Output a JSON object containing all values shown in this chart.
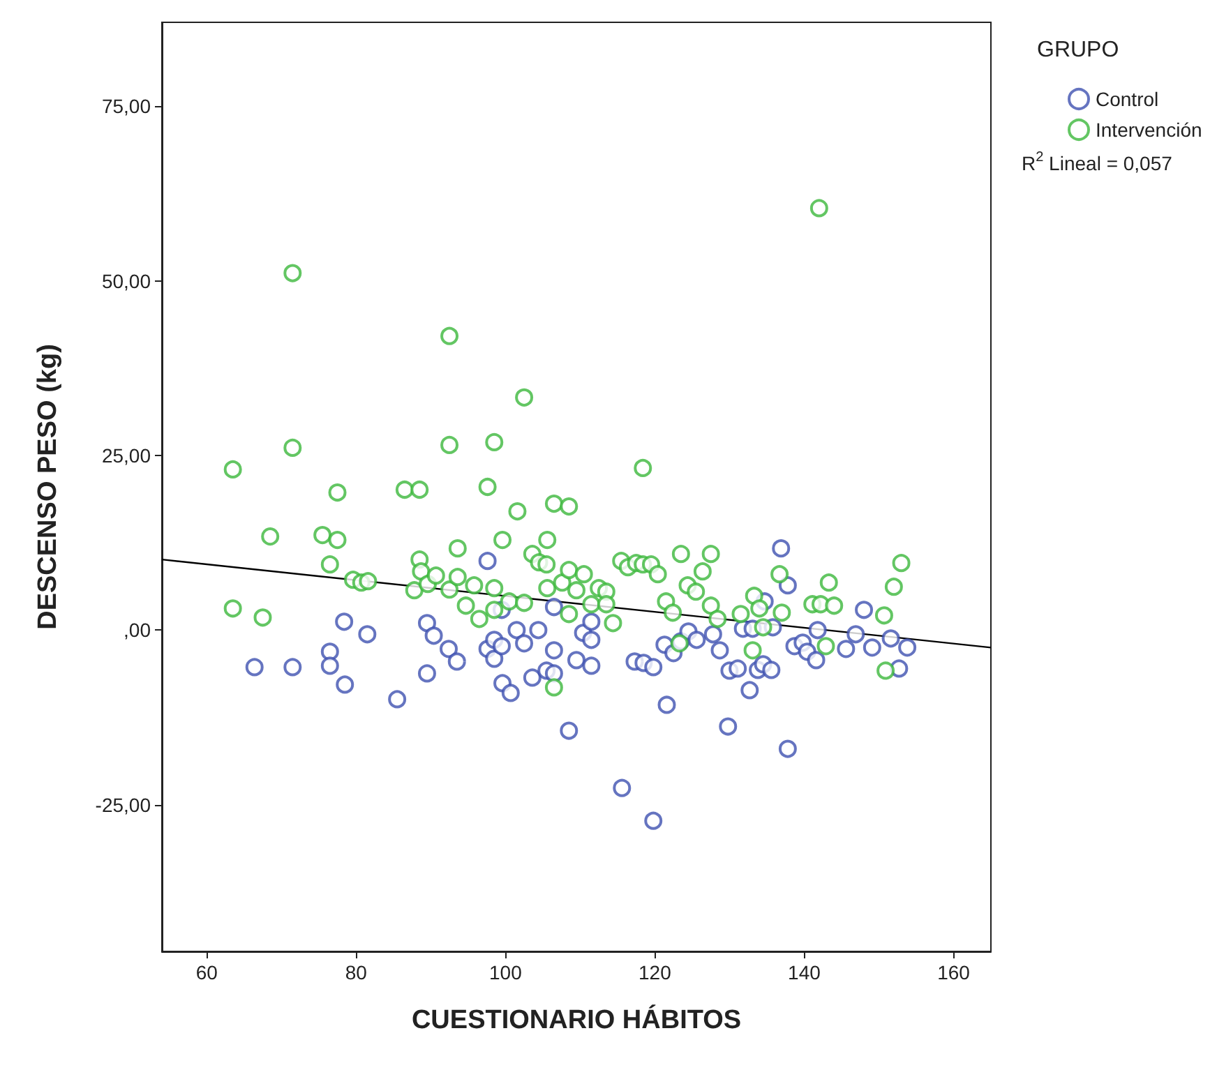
{
  "chart_data": {
    "type": "scatter",
    "xlabel": "CUESTIONARIO HÁBITOS",
    "ylabel": "DESCENSO PESO (kg)",
    "legend_title": "GRUPO",
    "legend": "top right",
    "grid": false,
    "xlim": [
      54,
      165
    ],
    "xticks": [
      60,
      80,
      100,
      120,
      140,
      160
    ],
    "ylim": [
      -46,
      87
    ],
    "yticks": [
      {
        "value": -25,
        "label": "-25,00"
      },
      {
        "value": 0,
        "label": ",00"
      },
      {
        "value": 25,
        "label": "25,00"
      },
      {
        "value": 50,
        "label": "50,00"
      },
      {
        "value": 75,
        "label": "75,00"
      }
    ],
    "annotations": [
      "R$^{2}$ Lineal = 0,057"
    ],
    "series": [
      {
        "name": "Control",
        "color": "#3f51b0",
        "marker": "circle",
        "x": [
          66.4,
          71.5,
          76.5,
          76.5,
          78.5,
          78.4,
          81.5,
          85.5,
          89.5,
          89.5,
          90.4,
          92.4,
          93.5,
          97.6,
          97.6,
          98.5,
          98.5,
          99.5,
          99.5,
          99.6,
          100.7,
          101.5,
          102.5,
          103.6,
          104.4,
          105.5,
          106.5,
          106.5,
          106.5,
          108.5,
          109.5,
          110.4,
          111.5,
          111.5,
          111.5,
          115.6,
          119.8,
          121.6,
          129.8,
          137.8,
          132.7,
          117.3,
          118.5,
          119.8,
          121.3,
          122.5,
          123.5,
          124.5,
          125.6,
          127.8,
          128.7,
          130,
          131.1,
          131.8,
          133.1,
          133.8,
          134.5,
          135.6,
          134.7,
          135.8,
          136.9,
          137.8,
          138.7,
          139.8,
          140.4,
          141.6,
          141.8,
          145.6,
          146.9,
          148,
          149.1,
          152.7,
          153.8,
          151.6
        ],
        "values": [
          -5.3,
          -5.3,
          -3.1,
          -5.1,
          -7.8,
          1.2,
          -0.6,
          -9.9,
          1.0,
          -6.2,
          -0.8,
          -2.7,
          -4.5,
          9.9,
          -2.7,
          -1.4,
          -4.1,
          -2.3,
          2.9,
          -7.6,
          -9.0,
          0,
          -1.9,
          -6.8,
          0,
          -5.8,
          -2.9,
          -6.2,
          3.3,
          -14.4,
          -4.3,
          -0.4,
          1.2,
          -1.4,
          -5.1,
          -22.6,
          -27.3,
          -10.7,
          -13.8,
          -17.0,
          -8.6,
          -4.5,
          -4.7,
          -5.3,
          -2.1,
          -3.3,
          -1.6,
          -0.2,
          -1.4,
          -0.6,
          -2.9,
          -5.8,
          -5.5,
          0.2,
          0.2,
          -5.7,
          -4.9,
          -5.7,
          4.1,
          0.4,
          11.7,
          6.4,
          -2.3,
          -1.8,
          -3.1,
          -4.3,
          0,
          -2.7,
          -0.6,
          2.9,
          -2.5,
          -5.5,
          -2.5,
          -1.2
        ]
      },
      {
        "name": "Intervención",
        "color": "#3cb83c",
        "marker": "circle",
        "x": [
          63.5,
          63.5,
          67.5,
          68.5,
          71.5,
          71.5,
          75.5,
          76.5,
          77.5,
          77.5,
          79.6,
          80.7,
          81.6,
          86.5,
          88.5,
          88.5,
          88.7,
          87.8,
          89.6,
          90.7,
          92.5,
          92.5,
          92.5,
          93.6,
          93.6,
          94.7,
          95.8,
          96.5,
          97.6,
          98.5,
          98.5,
          98.5,
          99.6,
          100.5,
          101.6,
          102.5,
          102.5,
          103.6,
          104.5,
          105.5,
          105.6,
          105.6,
          106.5,
          107.6,
          106.5,
          108.5,
          108.5,
          108.5,
          109.5,
          110.5,
          111.5,
          112.5,
          113.5,
          113.5,
          114.4,
          115.5,
          116.4,
          117.5,
          118.4,
          118.4,
          119.5,
          120.4,
          121.5,
          122.4,
          123.5,
          124.4,
          125.5,
          126.4,
          127.5,
          127.5,
          128.4,
          123.3,
          131.5,
          133.3,
          134,
          134.5,
          136.7,
          137,
          141.1,
          142.2,
          142.9,
          143.3,
          144,
          142,
          150.7,
          150.9,
          152,
          153,
          133.1
        ],
        "values": [
          23.0,
          3.1,
          1.8,
          13.4,
          51.1,
          26.1,
          13.6,
          9.4,
          19.7,
          12.9,
          7.2,
          6.8,
          7.0,
          20.1,
          20.1,
          10.1,
          8.4,
          5.7,
          6.6,
          7.8,
          42.1,
          26.5,
          5.8,
          11.7,
          7.6,
          3.5,
          6.4,
          1.6,
          20.5,
          26.9,
          6.0,
          2.9,
          12.9,
          4.1,
          17.0,
          33.3,
          3.9,
          10.9,
          9.7,
          9.4,
          12.9,
          6.0,
          18.1,
          6.8,
          -8.2,
          17.7,
          8.6,
          2.3,
          5.7,
          8.0,
          3.7,
          6.0,
          5.5,
          3.7,
          1.0,
          9.9,
          9.0,
          9.6,
          23.2,
          9.4,
          9.4,
          8.0,
          4.1,
          2.5,
          10.9,
          6.4,
          5.5,
          8.4,
          10.9,
          3.5,
          1.6,
          -1.9,
          2.3,
          4.9,
          3.1,
          0.4,
          8.0,
          2.5,
          3.7,
          3.7,
          -2.3,
          6.8,
          3.5,
          60.4,
          2.1,
          -5.8,
          6.2,
          9.6,
          -2.9
        ]
      },
      {
        "type": "line",
        "color": "#000000",
        "marker": "none",
        "x": [
          54,
          165
        ],
        "values": [
          10.1,
          -2.5
        ]
      }
    ]
  }
}
